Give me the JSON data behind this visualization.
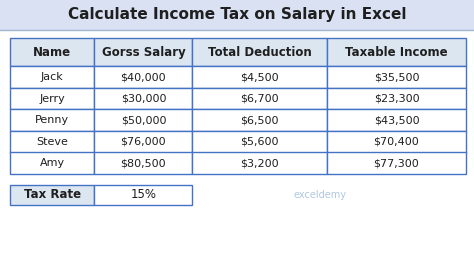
{
  "title": "Calculate Income Tax on Salary in Excel",
  "title_fontsize": 11,
  "title_bg_color": "#d9e1f2",
  "headers": [
    "Name",
    "Gorss Salary",
    "Total Deduction",
    "Taxable Income"
  ],
  "rows": [
    [
      "Jack",
      "$40,000",
      "$4,500",
      "$35,500"
    ],
    [
      "Jerry",
      "$30,000",
      "$6,700",
      "$23,300"
    ],
    [
      "Penny",
      "$50,000",
      "$6,500",
      "$43,500"
    ],
    [
      "Steve",
      "$76,000",
      "$5,600",
      "$70,400"
    ],
    [
      "Amy",
      "$80,500",
      "$3,200",
      "$77,300"
    ]
  ],
  "tax_rate_label": "Tax Rate",
  "tax_rate_value": "15%",
  "header_bg_color": "#dce6f1",
  "row_bg_color": "#ffffff",
  "border_color": "#4472c4",
  "text_color": "#1f1f1f",
  "bg_color": "#ffffff",
  "watermark": "exceldemy",
  "fig_width": 4.74,
  "fig_height": 2.56,
  "dpi": 100
}
